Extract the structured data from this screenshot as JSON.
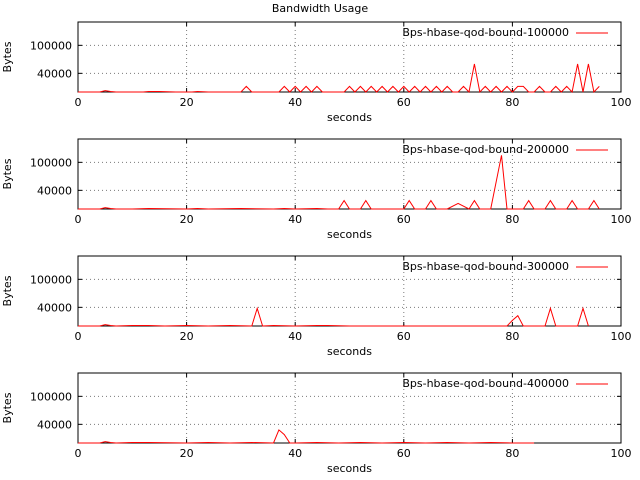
{
  "page": {
    "title": "Bandwidth Usage"
  },
  "colors": {
    "series": "#ff0000",
    "axis": "#000000",
    "grid": "#7a7a7a",
    "background": "#ffffff"
  },
  "chart_data": [
    {
      "type": "line",
      "title": "Bandwidth Usage",
      "xlabel": "seconds",
      "ylabel": "Bytes",
      "xlim": [
        0,
        100
      ],
      "ylim": [
        0,
        150000
      ],
      "xticks": [
        0,
        20,
        40,
        60,
        80,
        100
      ],
      "yticks": [
        40000,
        100000
      ],
      "grid": true,
      "legend": "top-right",
      "series": [
        {
          "name": "Bps-hbase-qod-bound-100000",
          "color": "#ff0000",
          "x": [
            0,
            4,
            5,
            6,
            7,
            10,
            12,
            13,
            15,
            18,
            21,
            22,
            24,
            26,
            29,
            30,
            31,
            32,
            37,
            38,
            39,
            40,
            41,
            42,
            43,
            44,
            45,
            46,
            49,
            50,
            51,
            52,
            53,
            54,
            55,
            56,
            57,
            58,
            59,
            60,
            61,
            62,
            63,
            64,
            65,
            66,
            67,
            68,
            69,
            70,
            71,
            72,
            73,
            74,
            75,
            76,
            77,
            78,
            79,
            80,
            81,
            82,
            83,
            84,
            85,
            86,
            87,
            88,
            89,
            90,
            91,
            92,
            93,
            94,
            95,
            96
          ],
          "values": [
            0,
            0,
            3000,
            1000,
            0,
            0,
            0,
            1000,
            1000,
            0,
            0,
            1000,
            0,
            0,
            0,
            0,
            12000,
            0,
            0,
            12000,
            0,
            12000,
            0,
            12000,
            0,
            12000,
            0,
            0,
            0,
            12000,
            0,
            12000,
            0,
            12000,
            0,
            12000,
            0,
            12000,
            0,
            12000,
            0,
            12000,
            0,
            12000,
            0,
            12000,
            0,
            12000,
            0,
            0,
            12000,
            0,
            60000,
            0,
            12000,
            0,
            12000,
            0,
            12000,
            0,
            12000,
            12000,
            0,
            0,
            12000,
            0,
            0,
            12000,
            0,
            12000,
            0,
            60000,
            0,
            60000,
            0,
            12000
          ]
        }
      ]
    },
    {
      "type": "line",
      "title": "",
      "xlabel": "seconds",
      "ylabel": "Bytes",
      "xlim": [
        0,
        100
      ],
      "ylim": [
        0,
        150000
      ],
      "xticks": [
        0,
        20,
        40,
        60,
        80,
        100
      ],
      "yticks": [
        40000,
        100000
      ],
      "grid": true,
      "legend": "top-right",
      "series": [
        {
          "name": "Bps-hbase-qod-bound-200000",
          "color": "#ff0000",
          "x": [
            0,
            4,
            5,
            6,
            7,
            10,
            13,
            20,
            22,
            24,
            30,
            36,
            38,
            40,
            44,
            46,
            48,
            49,
            50,
            52,
            53,
            54,
            56,
            58,
            60,
            61,
            62,
            64,
            65,
            66,
            68,
            70,
            72,
            73,
            74,
            76,
            78,
            79,
            80,
            82,
            83,
            84,
            86,
            87,
            88,
            90,
            91,
            92,
            94,
            95,
            96
          ],
          "values": [
            0,
            0,
            3000,
            1000,
            0,
            0,
            1000,
            0,
            1000,
            0,
            1000,
            0,
            1000,
            0,
            1000,
            0,
            0,
            18000,
            0,
            0,
            18000,
            0,
            0,
            0,
            0,
            18000,
            0,
            0,
            18000,
            0,
            0,
            12000,
            0,
            18000,
            0,
            0,
            115000,
            0,
            0,
            0,
            18000,
            0,
            0,
            18000,
            0,
            0,
            18000,
            0,
            0,
            18000,
            0
          ]
        }
      ]
    },
    {
      "type": "line",
      "title": "",
      "xlabel": "seconds",
      "ylabel": "Bytes",
      "xlim": [
        0,
        100
      ],
      "ylim": [
        0,
        150000
      ],
      "xticks": [
        0,
        20,
        40,
        60,
        80,
        100
      ],
      "yticks": [
        40000,
        100000
      ],
      "grid": true,
      "legend": "top-right",
      "series": [
        {
          "name": "Bps-hbase-qod-bound-300000",
          "color": "#ff0000",
          "x": [
            0,
            4,
            5,
            6,
            7,
            10,
            13,
            16,
            20,
            24,
            28,
            32,
            33,
            34,
            36,
            40,
            44,
            46,
            50,
            60,
            70,
            79,
            80,
            81,
            82,
            86,
            87,
            88,
            92,
            93,
            94
          ],
          "values": [
            0,
            0,
            3000,
            1000,
            0,
            1000,
            1000,
            0,
            1000,
            0,
            1000,
            0,
            38000,
            0,
            1000,
            0,
            1000,
            1000,
            0,
            0,
            0,
            0,
            12000,
            22000,
            0,
            0,
            38000,
            0,
            0,
            38000,
            0
          ]
        }
      ]
    },
    {
      "type": "line",
      "title": "",
      "xlabel": "seconds",
      "ylabel": "Bytes",
      "xlim": [
        0,
        100
      ],
      "ylim": [
        0,
        150000
      ],
      "xticks": [
        0,
        20,
        40,
        60,
        80,
        100
      ],
      "yticks": [
        40000,
        100000
      ],
      "grid": true,
      "legend": "top-right",
      "series": [
        {
          "name": "Bps-hbase-qod-bound-400000",
          "color": "#ff0000",
          "x": [
            0,
            4,
            5,
            6,
            7,
            10,
            13,
            20,
            24,
            28,
            32,
            36,
            37,
            38,
            39,
            40,
            44,
            48,
            52,
            56,
            60,
            64,
            68,
            72,
            76,
            80,
            84
          ],
          "values": [
            0,
            0,
            3000,
            1000,
            0,
            1000,
            1000,
            0,
            1000,
            0,
            1000,
            0,
            28000,
            18000,
            0,
            0,
            1000,
            0,
            1000,
            0,
            1000,
            0,
            1000,
            0,
            1000,
            0,
            0
          ]
        }
      ]
    }
  ]
}
